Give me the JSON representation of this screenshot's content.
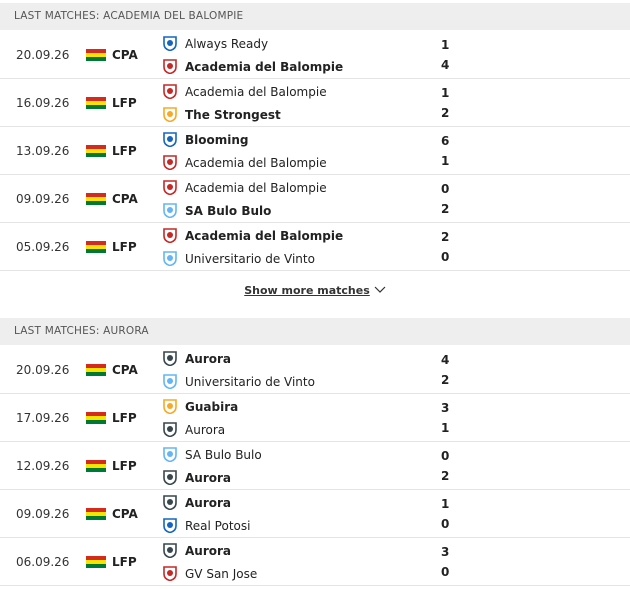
{
  "sections": [
    {
      "title": "LAST MATCHES: ACADEMIA DEL BALOMPIE",
      "matches": [
        {
          "date": "20.09.26",
          "competition": "CPA",
          "home": "Always Ready",
          "away": "Academia del Balompie",
          "home_score": 1,
          "away_score": 4
        },
        {
          "date": "16.09.26",
          "competition": "LFP",
          "home": "Academia del Balompie",
          "away": "The Strongest",
          "home_score": 1,
          "away_score": 2
        },
        {
          "date": "13.09.26",
          "competition": "LFP",
          "home": "Blooming",
          "away": "Academia del Balompie",
          "home_score": 6,
          "away_score": 1
        },
        {
          "date": "09.09.26",
          "competition": "CPA",
          "home": "Academia del Balompie",
          "away": "SA Bulo Bulo",
          "home_score": 0,
          "away_score": 2
        },
        {
          "date": "05.09.26",
          "competition": "LFP",
          "home": "Academia del Balompie",
          "away": "Universitario de Vinto",
          "home_score": 2,
          "away_score": 0
        }
      ],
      "show_more": "Show more matches"
    },
    {
      "title": "LAST MATCHES: AURORA",
      "matches": [
        {
          "date": "20.09.26",
          "competition": "CPA",
          "home": "Aurora",
          "away": "Universitario de Vinto",
          "home_score": 4,
          "away_score": 2
        },
        {
          "date": "17.09.26",
          "competition": "LFP",
          "home": "Guabira",
          "away": "Aurora",
          "home_score": 3,
          "away_score": 1
        },
        {
          "date": "12.09.26",
          "competition": "LFP",
          "home": "SA Bulo Bulo",
          "away": "Aurora",
          "home_score": 0,
          "away_score": 2
        },
        {
          "date": "09.09.26",
          "competition": "CPA",
          "home": "Aurora",
          "away": "Real Potosi",
          "home_score": 1,
          "away_score": 0
        },
        {
          "date": "06.09.26",
          "competition": "LFP",
          "home": "Aurora",
          "away": "GV San Jose",
          "home_score": 3,
          "away_score": 0
        }
      ]
    }
  ]
}
